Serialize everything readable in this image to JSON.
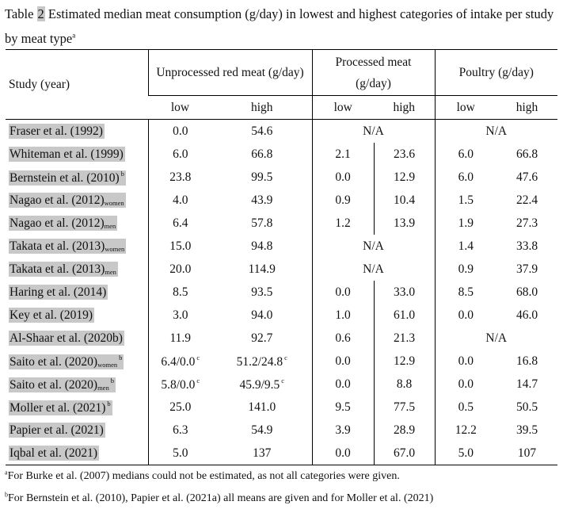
{
  "caption": {
    "prefix": "Table ",
    "number": "2",
    "text": " Estimated median meat consumption (g/day) in lowest and highest categories of intake per study by meat type",
    "marker": "a"
  },
  "table": {
    "headers": {
      "study": "Study (year)",
      "unprocessed": "Unprocessed red meat (g/day)",
      "processed_line1": "Processed meat",
      "processed_line2": "(g/day)",
      "poultry": "Poultry (g/day)",
      "low": "low",
      "high": "high"
    },
    "rows": [
      {
        "study": "Fraser et al. (1992)",
        "sub": "",
        "sup": "",
        "ur_low": "0.0",
        "ur_low_sup": "",
        "ur_high": "54.6",
        "ur_high_sup": "",
        "pm": "N/A",
        "po": "N/A"
      },
      {
        "study": "Whiteman et al. (1999)",
        "sub": "",
        "sup": "",
        "ur_low": "6.0",
        "ur_low_sup": "",
        "ur_high": "66.8",
        "ur_high_sup": "",
        "pm_low": "2.1",
        "pm_high": "23.6",
        "po_low": "6.0",
        "po_high": "66.8"
      },
      {
        "study": "Bernstein et al. (2010)",
        "sub": "",
        "sup": "b",
        "ur_low": "23.8",
        "ur_low_sup": "",
        "ur_high": "99.5",
        "ur_high_sup": "",
        "pm_low": "0.0",
        "pm_high": "12.9",
        "po_low": "6.0",
        "po_high": "47.6"
      },
      {
        "study": "Nagao et al. (2012)",
        "sub": "women",
        "sup": "",
        "ur_low": "4.0",
        "ur_low_sup": "",
        "ur_high": "43.9",
        "ur_high_sup": "",
        "pm_low": "0.9",
        "pm_high": "10.4",
        "po_low": "1.5",
        "po_high": "22.4"
      },
      {
        "study": "Nagao et al. (2012)",
        "sub": "men",
        "sup": "",
        "ur_low": "6.4",
        "ur_low_sup": "",
        "ur_high": "57.8",
        "ur_high_sup": "",
        "pm_low": "1.2",
        "pm_high": "13.9",
        "po_low": "1.9",
        "po_high": "27.3"
      },
      {
        "study": "Takata et al. (2013)",
        "sub": "women",
        "sup": "",
        "ur_low": "15.0",
        "ur_low_sup": "",
        "ur_high": "94.8",
        "ur_high_sup": "",
        "pm": "N/A",
        "po_low": "1.4",
        "po_high": "33.8"
      },
      {
        "study": "Takata et al. (2013)",
        "sub": "men",
        "sup": "",
        "ur_low": "20.0",
        "ur_low_sup": "",
        "ur_high": "114.9",
        "ur_high_sup": "",
        "pm": "N/A",
        "po_low": "0.9",
        "po_high": "37.9"
      },
      {
        "study": "Haring et al. (2014)",
        "sub": "",
        "sup": "",
        "ur_low": "8.5",
        "ur_low_sup": "",
        "ur_high": "93.5",
        "ur_high_sup": "",
        "pm_low": "0.0",
        "pm_high": "33.0",
        "po_low": "8.5",
        "po_high": "68.0"
      },
      {
        "study": "Key et al. (2019)",
        "sub": "",
        "sup": "",
        "ur_low": "3.0",
        "ur_low_sup": "",
        "ur_high": "94.0",
        "ur_high_sup": "",
        "pm_low": "1.0",
        "pm_high": "61.0",
        "po_low": "0.0",
        "po_high": "46.0"
      },
      {
        "study": "Al-Shaar et al. (2020b)",
        "sub": "",
        "sup": "",
        "ur_low": "11.9",
        "ur_low_sup": "",
        "ur_high": "92.7",
        "ur_high_sup": "",
        "pm_low": "0.6",
        "pm_high": "21.3",
        "po": "N/A"
      },
      {
        "study": "Saito et al. (2020)",
        "sub": "women",
        "sup": "b",
        "ur_low": "6.4/0.0",
        "ur_low_sup": "c",
        "ur_high": "51.2/24.8",
        "ur_high_sup": "c",
        "pm_low": "0.0",
        "pm_high": "12.9",
        "po_low": "0.0",
        "po_high": "16.8"
      },
      {
        "study": "Saito et al. (2020)",
        "sub": "men",
        "sup": "b",
        "ur_low": "5.8/0.0",
        "ur_low_sup": "c",
        "ur_high": "45.9/9.5",
        "ur_high_sup": "c",
        "pm_low": "0.0",
        "pm_high": "8.8",
        "po_low": "0.0",
        "po_high": "14.7"
      },
      {
        "study": "Moller et al. (2021)",
        "sub": "",
        "sup": "b",
        "ur_low": "25.0",
        "ur_low_sup": "",
        "ur_high": "141.0",
        "ur_high_sup": "",
        "pm_low": "9.5",
        "pm_high": "77.5",
        "po_low": "0.5",
        "po_high": "50.5"
      },
      {
        "study": "Papier et al. (2021)",
        "sub": "",
        "sup": "",
        "ur_low": "6.3",
        "ur_low_sup": "",
        "ur_high": "54.9",
        "ur_high_sup": "",
        "pm_low": "3.9",
        "pm_high": "28.9",
        "po_low": "12.2",
        "po_high": "39.5"
      },
      {
        "study": "Iqbal et al. (2021)",
        "sub": "",
        "sup": "",
        "ur_low": "5.0",
        "ur_low_sup": "",
        "ur_high": "137",
        "ur_high_sup": "",
        "pm_low": "0.0",
        "pm_high": "67.0",
        "po_low": "5.0",
        "po_high": "107"
      }
    ]
  },
  "footnotes": [
    {
      "marker": "a",
      "text": "For Burke et al. (2007) medians could not be estimated, as not all categories were given."
    },
    {
      "marker": "b",
      "text": "For Bernstein et al. (2010), Papier et al. (2021a) all means are given and for Moller et al. (2021)"
    }
  ]
}
